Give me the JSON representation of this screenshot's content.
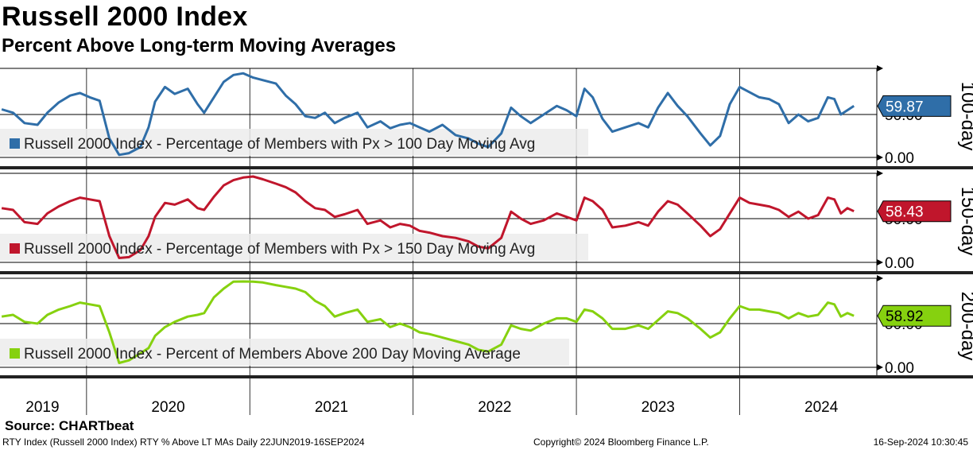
{
  "header": {
    "title": "Russell 2000 Index",
    "subtitle": "Percent Above Long-term Moving Averages"
  },
  "footer": {
    "source": "Source: CHARTbeat",
    "left": "RTY Index (Russell 2000 Index) RTY % Above LT MAs  Daily 22JUN2019-16SEP2024",
    "center": "Copyright© 2024 Bloomberg Finance L.P.",
    "right": "16-Sep-2024 10:30:45"
  },
  "colors": {
    "blue": "#2f6ea8",
    "red": "#c0162c",
    "green": "#86d10f",
    "frame": "#000000"
  },
  "chart_data": {
    "type": "line",
    "x_axis": {
      "start": "22JUN2019",
      "end": "16SEP2024",
      "year_labels": [
        "2019",
        "2020",
        "2021",
        "2022",
        "2023",
        "2024"
      ]
    },
    "panels": [
      {
        "side_label": "100-day",
        "legend": "Russell 2000 Index - Percentage of Members with Px > 100 Day Moving Avg",
        "last_value": "59.87",
        "tick_labels": [
          "50.00",
          "0.00"
        ],
        "ylim": [
          0,
          100
        ],
        "color": "#2f6ea8",
        "series": [
          [
            2019.48,
            56
          ],
          [
            2019.55,
            52
          ],
          [
            2019.62,
            40
          ],
          [
            2019.7,
            38
          ],
          [
            2019.76,
            52
          ],
          [
            2019.83,
            64
          ],
          [
            2019.9,
            72
          ],
          [
            2019.96,
            75
          ],
          [
            2020.02,
            70
          ],
          [
            2020.08,
            66
          ],
          [
            2020.14,
            22
          ],
          [
            2020.2,
            3
          ],
          [
            2020.26,
            5
          ],
          [
            2020.33,
            12
          ],
          [
            2020.38,
            35
          ],
          [
            2020.42,
            65
          ],
          [
            2020.48,
            82
          ],
          [
            2020.54,
            74
          ],
          [
            2020.62,
            80
          ],
          [
            2020.68,
            62
          ],
          [
            2020.72,
            52
          ],
          [
            2020.78,
            70
          ],
          [
            2020.84,
            88
          ],
          [
            2020.9,
            96
          ],
          [
            2020.96,
            98
          ],
          [
            2021.02,
            93
          ],
          [
            2021.08,
            90
          ],
          [
            2021.16,
            86
          ],
          [
            2021.22,
            72
          ],
          [
            2021.28,
            62
          ],
          [
            2021.34,
            48
          ],
          [
            2021.4,
            46
          ],
          [
            2021.46,
            52
          ],
          [
            2021.52,
            40
          ],
          [
            2021.58,
            46
          ],
          [
            2021.66,
            52
          ],
          [
            2021.72,
            35
          ],
          [
            2021.8,
            42
          ],
          [
            2021.86,
            34
          ],
          [
            2021.92,
            38
          ],
          [
            2021.98,
            40
          ],
          [
            2022.04,
            35
          ],
          [
            2022.1,
            30
          ],
          [
            2022.18,
            38
          ],
          [
            2022.26,
            26
          ],
          [
            2022.34,
            22
          ],
          [
            2022.4,
            16
          ],
          [
            2022.46,
            12
          ],
          [
            2022.54,
            28
          ],
          [
            2022.6,
            58
          ],
          [
            2022.66,
            48
          ],
          [
            2022.72,
            40
          ],
          [
            2022.8,
            50
          ],
          [
            2022.88,
            60
          ],
          [
            2022.94,
            55
          ],
          [
            2023.0,
            48
          ],
          [
            2023.05,
            80
          ],
          [
            2023.1,
            70
          ],
          [
            2023.16,
            45
          ],
          [
            2023.22,
            30
          ],
          [
            2023.3,
            35
          ],
          [
            2023.38,
            40
          ],
          [
            2023.44,
            35
          ],
          [
            2023.5,
            58
          ],
          [
            2023.56,
            75
          ],
          [
            2023.62,
            60
          ],
          [
            2023.68,
            48
          ],
          [
            2023.76,
            28
          ],
          [
            2023.82,
            14
          ],
          [
            2023.88,
            25
          ],
          [
            2023.94,
            62
          ],
          [
            2024.0,
            82
          ],
          [
            2024.06,
            76
          ],
          [
            2024.12,
            70
          ],
          [
            2024.18,
            68
          ],
          [
            2024.24,
            62
          ],
          [
            2024.3,
            40
          ],
          [
            2024.36,
            50
          ],
          [
            2024.42,
            42
          ],
          [
            2024.48,
            46
          ],
          [
            2024.54,
            70
          ],
          [
            2024.58,
            68
          ],
          [
            2024.62,
            50
          ],
          [
            2024.66,
            55
          ],
          [
            2024.7,
            59.87
          ]
        ]
      },
      {
        "side_label": "150-day",
        "legend": "Russell 2000 Index - Percentage of Members with Px > 150 Day Moving Avg",
        "last_value": "58.43",
        "tick_labels": [
          "50.00",
          "0.00"
        ],
        "ylim": [
          0,
          100
        ],
        "color": "#c0162c",
        "series": [
          [
            2019.48,
            62
          ],
          [
            2019.55,
            60
          ],
          [
            2019.62,
            46
          ],
          [
            2019.7,
            44
          ],
          [
            2019.76,
            56
          ],
          [
            2019.83,
            64
          ],
          [
            2019.9,
            70
          ],
          [
            2019.96,
            74
          ],
          [
            2020.02,
            72
          ],
          [
            2020.08,
            70
          ],
          [
            2020.14,
            30
          ],
          [
            2020.2,
            5
          ],
          [
            2020.26,
            6
          ],
          [
            2020.33,
            14
          ],
          [
            2020.38,
            30
          ],
          [
            2020.42,
            52
          ],
          [
            2020.48,
            68
          ],
          [
            2020.54,
            66
          ],
          [
            2020.62,
            72
          ],
          [
            2020.68,
            62
          ],
          [
            2020.72,
            60
          ],
          [
            2020.78,
            75
          ],
          [
            2020.84,
            88
          ],
          [
            2020.9,
            94
          ],
          [
            2020.96,
            97
          ],
          [
            2021.02,
            99
          ],
          [
            2021.08,
            95
          ],
          [
            2021.16,
            90
          ],
          [
            2021.22,
            86
          ],
          [
            2021.28,
            80
          ],
          [
            2021.34,
            70
          ],
          [
            2021.4,
            62
          ],
          [
            2021.46,
            60
          ],
          [
            2021.52,
            52
          ],
          [
            2021.58,
            55
          ],
          [
            2021.66,
            60
          ],
          [
            2021.72,
            44
          ],
          [
            2021.8,
            48
          ],
          [
            2021.86,
            40
          ],
          [
            2021.92,
            44
          ],
          [
            2021.98,
            42
          ],
          [
            2022.04,
            36
          ],
          [
            2022.1,
            34
          ],
          [
            2022.18,
            30
          ],
          [
            2022.26,
            28
          ],
          [
            2022.34,
            24
          ],
          [
            2022.4,
            18
          ],
          [
            2022.46,
            16
          ],
          [
            2022.54,
            28
          ],
          [
            2022.6,
            58
          ],
          [
            2022.66,
            50
          ],
          [
            2022.72,
            44
          ],
          [
            2022.8,
            48
          ],
          [
            2022.88,
            56
          ],
          [
            2022.94,
            52
          ],
          [
            2023.0,
            48
          ],
          [
            2023.05,
            74
          ],
          [
            2023.1,
            70
          ],
          [
            2023.16,
            60
          ],
          [
            2023.22,
            40
          ],
          [
            2023.3,
            42
          ],
          [
            2023.38,
            46
          ],
          [
            2023.44,
            42
          ],
          [
            2023.5,
            58
          ],
          [
            2023.56,
            70
          ],
          [
            2023.62,
            66
          ],
          [
            2023.68,
            56
          ],
          [
            2023.76,
            42
          ],
          [
            2023.82,
            30
          ],
          [
            2023.88,
            38
          ],
          [
            2023.94,
            56
          ],
          [
            2024.0,
            74
          ],
          [
            2024.06,
            68
          ],
          [
            2024.12,
            66
          ],
          [
            2024.18,
            64
          ],
          [
            2024.24,
            60
          ],
          [
            2024.3,
            52
          ],
          [
            2024.36,
            58
          ],
          [
            2024.42,
            50
          ],
          [
            2024.48,
            54
          ],
          [
            2024.54,
            74
          ],
          [
            2024.58,
            72
          ],
          [
            2024.62,
            56
          ],
          [
            2024.66,
            62
          ],
          [
            2024.7,
            58.43
          ]
        ]
      },
      {
        "side_label": "200-day",
        "legend": "Russell 2000 Index - Percent of Members Above 200 Day Moving Average",
        "last_value": "58.92",
        "tick_labels": [
          "50.00",
          "0.00"
        ],
        "ylim": [
          0,
          100
        ],
        "color": "#86d10f",
        "series": [
          [
            2019.48,
            58
          ],
          [
            2019.55,
            60
          ],
          [
            2019.62,
            52
          ],
          [
            2019.7,
            50
          ],
          [
            2019.76,
            60
          ],
          [
            2019.83,
            66
          ],
          [
            2019.9,
            70
          ],
          [
            2019.96,
            74
          ],
          [
            2020.02,
            72
          ],
          [
            2020.08,
            70
          ],
          [
            2020.14,
            40
          ],
          [
            2020.2,
            5
          ],
          [
            2020.26,
            8
          ],
          [
            2020.33,
            16
          ],
          [
            2020.38,
            22
          ],
          [
            2020.42,
            36
          ],
          [
            2020.48,
            46
          ],
          [
            2020.54,
            52
          ],
          [
            2020.62,
            58
          ],
          [
            2020.68,
            60
          ],
          [
            2020.72,
            62
          ],
          [
            2020.78,
            80
          ],
          [
            2020.84,
            90
          ],
          [
            2020.9,
            98
          ],
          [
            2020.96,
            99
          ],
          [
            2021.02,
            98
          ],
          [
            2021.08,
            97
          ],
          [
            2021.16,
            94
          ],
          [
            2021.22,
            92
          ],
          [
            2021.28,
            90
          ],
          [
            2021.34,
            86
          ],
          [
            2021.4,
            76
          ],
          [
            2021.46,
            70
          ],
          [
            2021.52,
            58
          ],
          [
            2021.58,
            62
          ],
          [
            2021.66,
            66
          ],
          [
            2021.72,
            52
          ],
          [
            2021.8,
            55
          ],
          [
            2021.86,
            46
          ],
          [
            2021.92,
            50
          ],
          [
            2021.98,
            46
          ],
          [
            2022.04,
            40
          ],
          [
            2022.1,
            38
          ],
          [
            2022.18,
            34
          ],
          [
            2022.26,
            30
          ],
          [
            2022.34,
            26
          ],
          [
            2022.4,
            20
          ],
          [
            2022.46,
            18
          ],
          [
            2022.54,
            26
          ],
          [
            2022.6,
            48
          ],
          [
            2022.66,
            44
          ],
          [
            2022.72,
            42
          ],
          [
            2022.8,
            50
          ],
          [
            2022.88,
            56
          ],
          [
            2022.94,
            56
          ],
          [
            2023.0,
            52
          ],
          [
            2023.05,
            66
          ],
          [
            2023.1,
            64
          ],
          [
            2023.16,
            56
          ],
          [
            2023.22,
            44
          ],
          [
            2023.3,
            44
          ],
          [
            2023.38,
            48
          ],
          [
            2023.44,
            44
          ],
          [
            2023.5,
            54
          ],
          [
            2023.56,
            64
          ],
          [
            2023.62,
            62
          ],
          [
            2023.68,
            56
          ],
          [
            2023.76,
            44
          ],
          [
            2023.82,
            34
          ],
          [
            2023.88,
            40
          ],
          [
            2023.94,
            56
          ],
          [
            2024.0,
            70
          ],
          [
            2024.06,
            66
          ],
          [
            2024.12,
            66
          ],
          [
            2024.18,
            64
          ],
          [
            2024.24,
            62
          ],
          [
            2024.3,
            56
          ],
          [
            2024.36,
            62
          ],
          [
            2024.42,
            58
          ],
          [
            2024.48,
            60
          ],
          [
            2024.54,
            74
          ],
          [
            2024.58,
            72
          ],
          [
            2024.62,
            58
          ],
          [
            2024.66,
            62
          ],
          [
            2024.7,
            58.92
          ]
        ]
      }
    ]
  }
}
